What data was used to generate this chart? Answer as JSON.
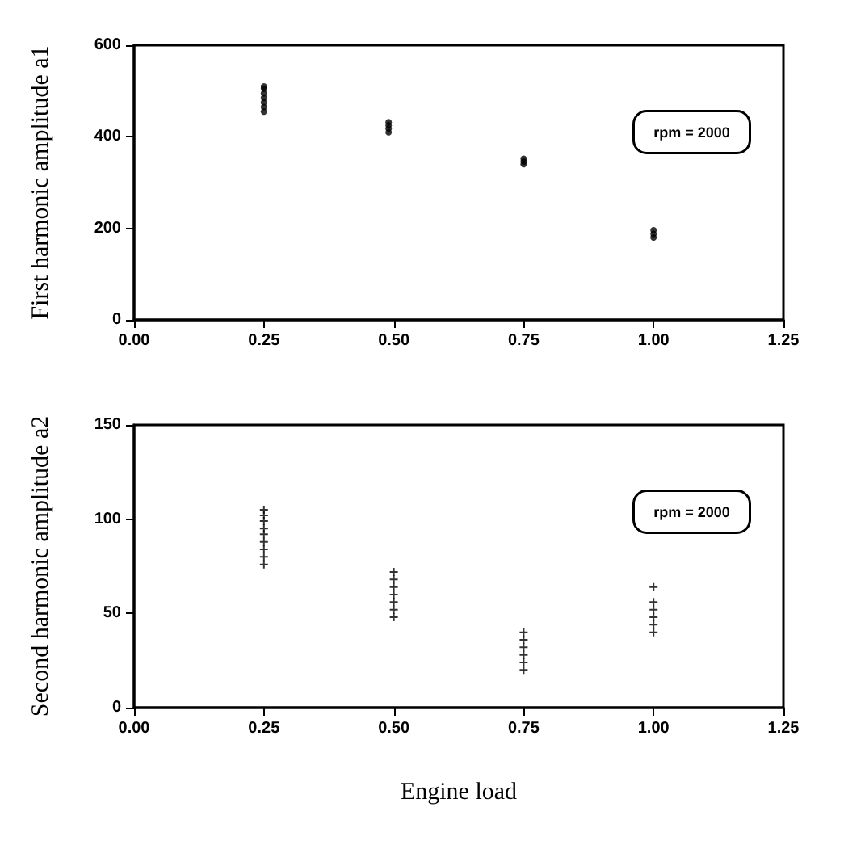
{
  "chart_data": [
    {
      "type": "scatter",
      "ylabel": "First harmonic amplitude a1",
      "x": [
        0.25,
        0.25,
        0.25,
        0.25,
        0.25,
        0.25,
        0.25,
        0.49,
        0.49,
        0.49,
        0.49,
        0.75,
        0.75,
        0.75,
        1.0,
        1.0,
        1.0
      ],
      "values": [
        455,
        465,
        475,
        485,
        495,
        505,
        510,
        410,
        418,
        425,
        432,
        340,
        346,
        352,
        180,
        188,
        196
      ],
      "color": "#000000",
      "marker": "circle",
      "xlim": [
        0,
        1.25
      ],
      "xticks": [
        {
          "value": 0,
          "label": "0.00"
        },
        {
          "value": 0.25,
          "label": "0.25"
        },
        {
          "value": 0.5,
          "label": "0.50"
        },
        {
          "value": 0.75,
          "label": "0.75"
        },
        {
          "value": 1,
          "label": "1.00"
        },
        {
          "value": 1.25,
          "label": "1.25"
        }
      ],
      "ylim": [
        0,
        600
      ],
      "yticks": [
        0,
        200,
        400,
        600
      ],
      "grid": false,
      "annotations": [
        "rpm = 2000"
      ]
    },
    {
      "type": "scatter",
      "ylabel": "Second harmonic amplitude a2",
      "xlabel": "Engine load",
      "x": [
        0.25,
        0.25,
        0.25,
        0.25,
        0.25,
        0.25,
        0.25,
        0.25,
        0.25,
        0.5,
        0.5,
        0.5,
        0.5,
        0.5,
        0.5,
        0.5,
        0.75,
        0.75,
        0.75,
        0.75,
        0.75,
        0.75,
        1.0,
        1.0,
        1.0,
        1.0,
        1.0,
        1.0
      ],
      "values": [
        76,
        80,
        84,
        88,
        92,
        95,
        99,
        102,
        105,
        48,
        52,
        56,
        60,
        64,
        68,
        72,
        20,
        24,
        28,
        32,
        36,
        40,
        40,
        44,
        48,
        52,
        56,
        64
      ],
      "color": "#000000",
      "marker": "cross",
      "xlim": [
        0,
        1.25
      ],
      "xticks": [
        {
          "value": 0,
          "label": "0.00"
        },
        {
          "value": 0.25,
          "label": "0.25"
        },
        {
          "value": 0.5,
          "label": "0.50"
        },
        {
          "value": 0.75,
          "label": "0.75"
        },
        {
          "value": 1,
          "label": "1.00"
        },
        {
          "value": 1.25,
          "label": "1.25"
        }
      ],
      "ylim": [
        0,
        150
      ],
      "yticks": [
        0,
        50,
        100,
        150
      ],
      "grid": false,
      "annotations": [
        "rpm = 2000"
      ]
    }
  ]
}
